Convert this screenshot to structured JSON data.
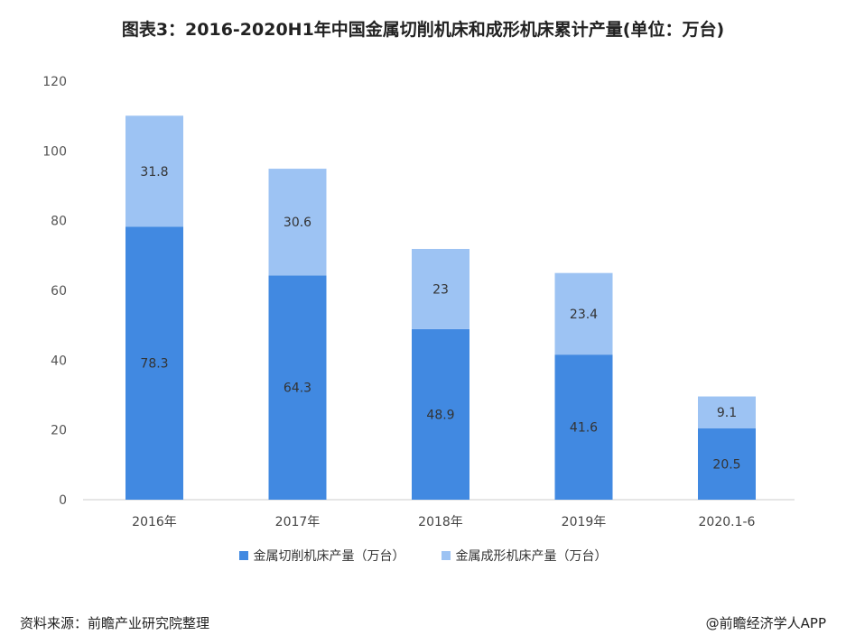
{
  "chart_data": {
    "type": "bar",
    "stacked": true,
    "title": "图表3：2016-2020H1年中国金属切削机床和成形机床累计产量(单位：万台)",
    "categories": [
      "2016年",
      "2017年",
      "2018年",
      "2019年",
      "2020.1-6"
    ],
    "series": [
      {
        "name": "金属切削机床产量（万台）",
        "values": [
          78.3,
          64.3,
          48.9,
          41.6,
          20.5
        ],
        "color": "#4189e1"
      },
      {
        "name": "金属成形机床产量（万台）",
        "values": [
          31.8,
          30.6,
          23,
          23.4,
          9.1
        ],
        "color": "#9dc3f3"
      }
    ],
    "ylim": [
      0,
      120
    ],
    "yticks": [
      0,
      20,
      40,
      60,
      80,
      100,
      120
    ],
    "xlabel": "",
    "ylabel": "",
    "grid": false,
    "legend": "bottom"
  },
  "footer": {
    "source": "资料来源：前瞻产业研究院整理",
    "brand": "@前瞻经济学人APP"
  }
}
